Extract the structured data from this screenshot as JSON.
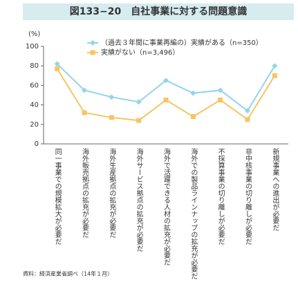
{
  "chart_data": {
    "type": "line",
    "title": "図133−20　自社事業に対する問題意識",
    "y_unit": "(%)",
    "source": "資料：経済産業省調べ（14年１月）",
    "categories": [
      "同一事業での規模拡大が必要だ",
      "海外販売拠点の拡充が必要だ",
      "海外生産拠点の拡充が必要だ",
      "海外サービス拠点の拡充が必要だ",
      "海外で活躍できる人材の拡充が必要だ",
      "海外での製品ラインナップの拡充が必要だ",
      "不採算事業の切り離しが必要だ",
      "非中核事業の切り離しが必要だ",
      "新規事業への進出が必要だ"
    ],
    "series": [
      {
        "name": "（過去３年間に事業再編の）実績がある（n=350）",
        "color": "#92d5ea",
        "marker": "diamond",
        "values": [
          82,
          55,
          48,
          43,
          65,
          52,
          55,
          34,
          80
        ]
      },
      {
        "name": "実績がない（n=3,496）",
        "color": "#f8c463",
        "marker": "square",
        "values": [
          77,
          32,
          27,
          24,
          45,
          28,
          45,
          25,
          70
        ]
      }
    ],
    "ylim": [
      0,
      100
    ],
    "yticks": [
      0,
      20,
      40,
      60,
      80,
      100
    ],
    "grid": false,
    "legend": "top"
  }
}
